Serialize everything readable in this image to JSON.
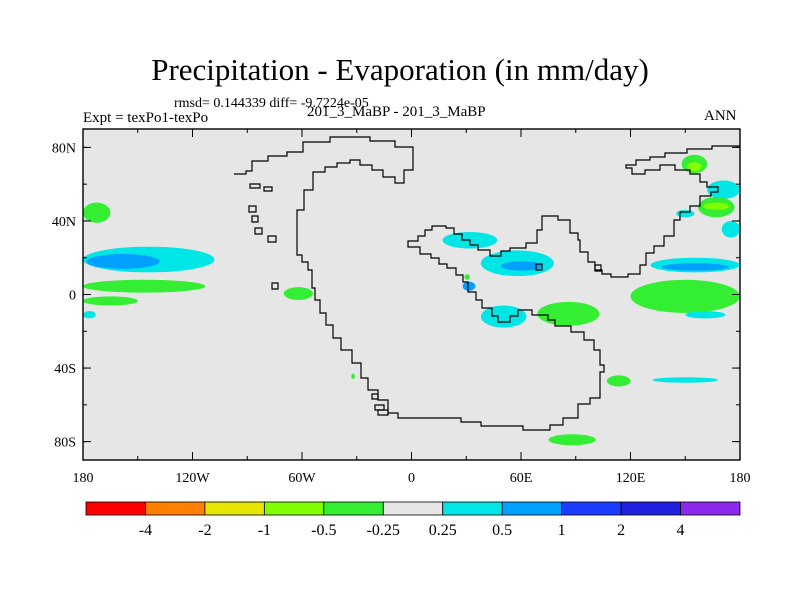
{
  "chart_data": {
    "type": "heatmap",
    "title": "Precipitation - Evaporation (in mm/day)",
    "stats_label": "rmsd= 0.144339 diff= -9.7224e-05",
    "experiment_label": "Expt = texPo1-texPo",
    "case_label": "201_3_MaBP - 201_3_MaBP",
    "season_label": "ANN",
    "x_range": [
      -180,
      180
    ],
    "y_range": [
      -90,
      90
    ],
    "x_ticks": [
      {
        "value": -180,
        "label": "180"
      },
      {
        "value": -120,
        "label": "120W"
      },
      {
        "value": -60,
        "label": "60W"
      },
      {
        "value": 0,
        "label": "0"
      },
      {
        "value": 60,
        "label": "60E"
      },
      {
        "value": 120,
        "label": "120E"
      },
      {
        "value": 180,
        "label": "180"
      }
    ],
    "y_ticks": [
      {
        "value": 80,
        "label": "80N"
      },
      {
        "value": 40,
        "label": "40N"
      },
      {
        "value": 0,
        "label": "0"
      },
      {
        "value": -40,
        "label": "40S"
      },
      {
        "value": -80,
        "label": "80S"
      }
    ],
    "colorbar": {
      "colors": [
        "#ff0000",
        "#ff8000",
        "#e6e600",
        "#80ff00",
        "#33ee33",
        "#e6e6e6",
        "#00e6e6",
        "#00a0ff",
        "#1c3cff",
        "#2020e0",
        "#8c28f0"
      ],
      "labels": [
        "-4",
        "-2",
        "-1",
        "-0.5",
        "-0.25",
        "0.25",
        "0.5",
        "1",
        "2",
        "4"
      ]
    },
    "background_color": "#e6e6e6",
    "regions": [
      {
        "lon": [
          -180,
          -165
        ],
        "lat": [
          39,
          50
        ],
        "cls": "-0.25 to -0.5"
      },
      {
        "lon": [
          -180,
          -108
        ],
        "lat": [
          12,
          26
        ],
        "cls": "0.25 to 0.5"
      },
      {
        "lon": [
          -178,
          -138
        ],
        "lat": [
          14,
          22
        ],
        "cls": "0.5 to 1"
      },
      {
        "lon": [
          -180,
          -113
        ],
        "lat": [
          1,
          8
        ],
        "cls": "-0.25 to -0.5"
      },
      {
        "lon": [
          -180,
          -150
        ],
        "lat": [
          -6,
          -1
        ],
        "cls": "-0.25 to -0.5"
      },
      {
        "lon": [
          -180,
          -173
        ],
        "lat": [
          -13,
          -9
        ],
        "cls": "0.25 to 0.5"
      },
      {
        "lon": [
          -70,
          -54
        ],
        "lat": [
          -3,
          4
        ],
        "cls": "-0.25 to -0.5"
      },
      {
        "lon": [
          -33,
          -31
        ],
        "lat": [
          -46,
          -43
        ],
        "cls": "-0.25 to -0.5"
      },
      {
        "lon": [
          17,
          47
        ],
        "lat": [
          25,
          34
        ],
        "cls": "0.25 to 0.5"
      },
      {
        "lon": [
          38,
          78
        ],
        "lat": [
          10,
          24
        ],
        "cls": "0.25 to 0.5"
      },
      {
        "lon": [
          49,
          72
        ],
        "lat": [
          13,
          18
        ],
        "cls": "0.5 to 1"
      },
      {
        "lon": [
          28,
          35
        ],
        "lat": [
          2,
          7
        ],
        "cls": "0.5 to 1"
      },
      {
        "lon": [
          29,
          32
        ],
        "lat": [
          8,
          11
        ],
        "cls": "-0.25 to -0.5"
      },
      {
        "lon": [
          38,
          63
        ],
        "lat": [
          -18,
          -6
        ],
        "cls": "0.25 to 0.5"
      },
      {
        "lon": [
          69,
          103
        ],
        "lat": [
          -17,
          -4
        ],
        "cls": "-0.25 to -0.5"
      },
      {
        "lon": [
          107,
          120
        ],
        "lat": [
          -50,
          -44
        ],
        "cls": "-0.25 to -0.5"
      },
      {
        "lon": [
          132,
          168
        ],
        "lat": [
          -48,
          -45
        ],
        "cls": "0.25 to 0.5"
      },
      {
        "lon": [
          75,
          101
        ],
        "lat": [
          -82,
          -76
        ],
        "cls": "-0.25 to -0.5"
      },
      {
        "lon": [
          120,
          180
        ],
        "lat": [
          -10,
          8
        ],
        "cls": "-0.25 to -0.5"
      },
      {
        "lon": [
          131,
          180
        ],
        "lat": [
          12,
          20
        ],
        "cls": "0.25 to 0.5"
      },
      {
        "lon": [
          137,
          174
        ],
        "lat": [
          13,
          17
        ],
        "cls": "0.5 to 1"
      },
      {
        "lon": [
          148,
          162
        ],
        "lat": [
          66,
          76
        ],
        "cls": "-0.25 to -0.5"
      },
      {
        "lon": [
          151,
          159
        ],
        "lat": [
          67,
          72
        ],
        "cls": "-1 to -0.5"
      },
      {
        "lon": [
          162,
          180
        ],
        "lat": [
          52,
          62
        ],
        "cls": "0.25 to 0.5"
      },
      {
        "lon": [
          157,
          177
        ],
        "lat": [
          42,
          53
        ],
        "cls": "-0.25 to -0.5"
      },
      {
        "lon": [
          160,
          174
        ],
        "lat": [
          46,
          50
        ],
        "cls": "-1 to -0.5"
      },
      {
        "lon": [
          170,
          180
        ],
        "lat": [
          31,
          40
        ],
        "cls": "0.25 to 0.5"
      },
      {
        "lon": [
          150,
          172
        ],
        "lat": [
          -13,
          -9
        ],
        "cls": "0.25 to 0.5"
      },
      {
        "lon": [
          145,
          155
        ],
        "lat": [
          42,
          46
        ],
        "cls": "0.25 to 0.5"
      }
    ]
  }
}
